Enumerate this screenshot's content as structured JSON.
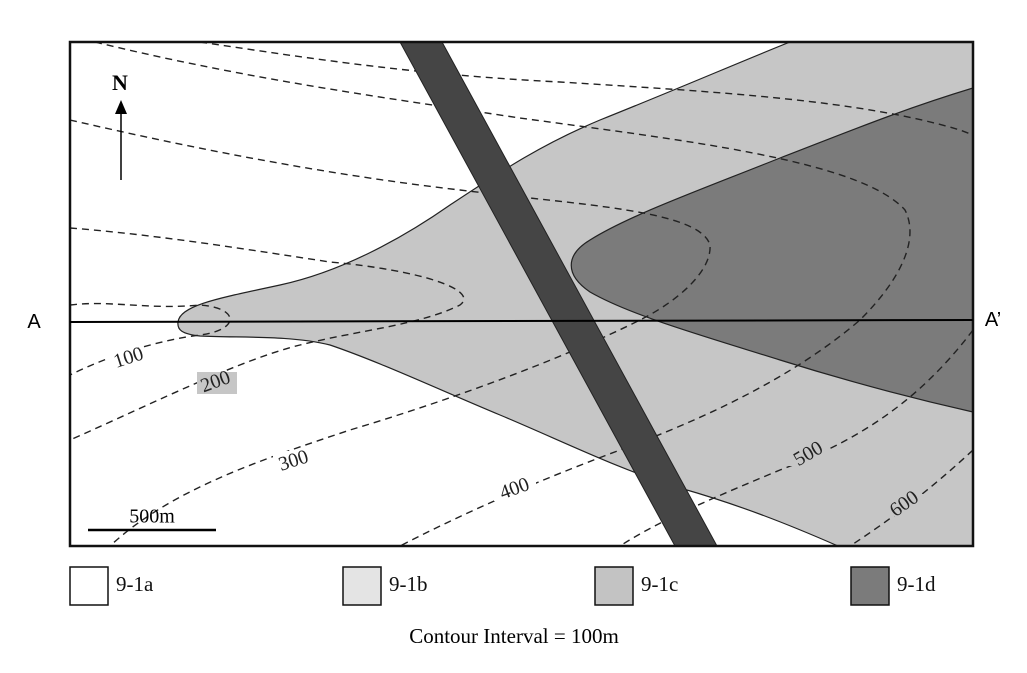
{
  "labels": {
    "north": "N",
    "a": "A",
    "a_prime": "A’"
  },
  "contours": [
    "100",
    "200",
    "300",
    "400",
    "500",
    "600"
  ],
  "scale_bar": "500m",
  "legend": [
    {
      "label": "9-1a"
    },
    {
      "label": "9-1b"
    },
    {
      "label": "9-1c"
    },
    {
      "label": "9-1d"
    }
  ],
  "caption": "Contour Interval = 100m"
}
